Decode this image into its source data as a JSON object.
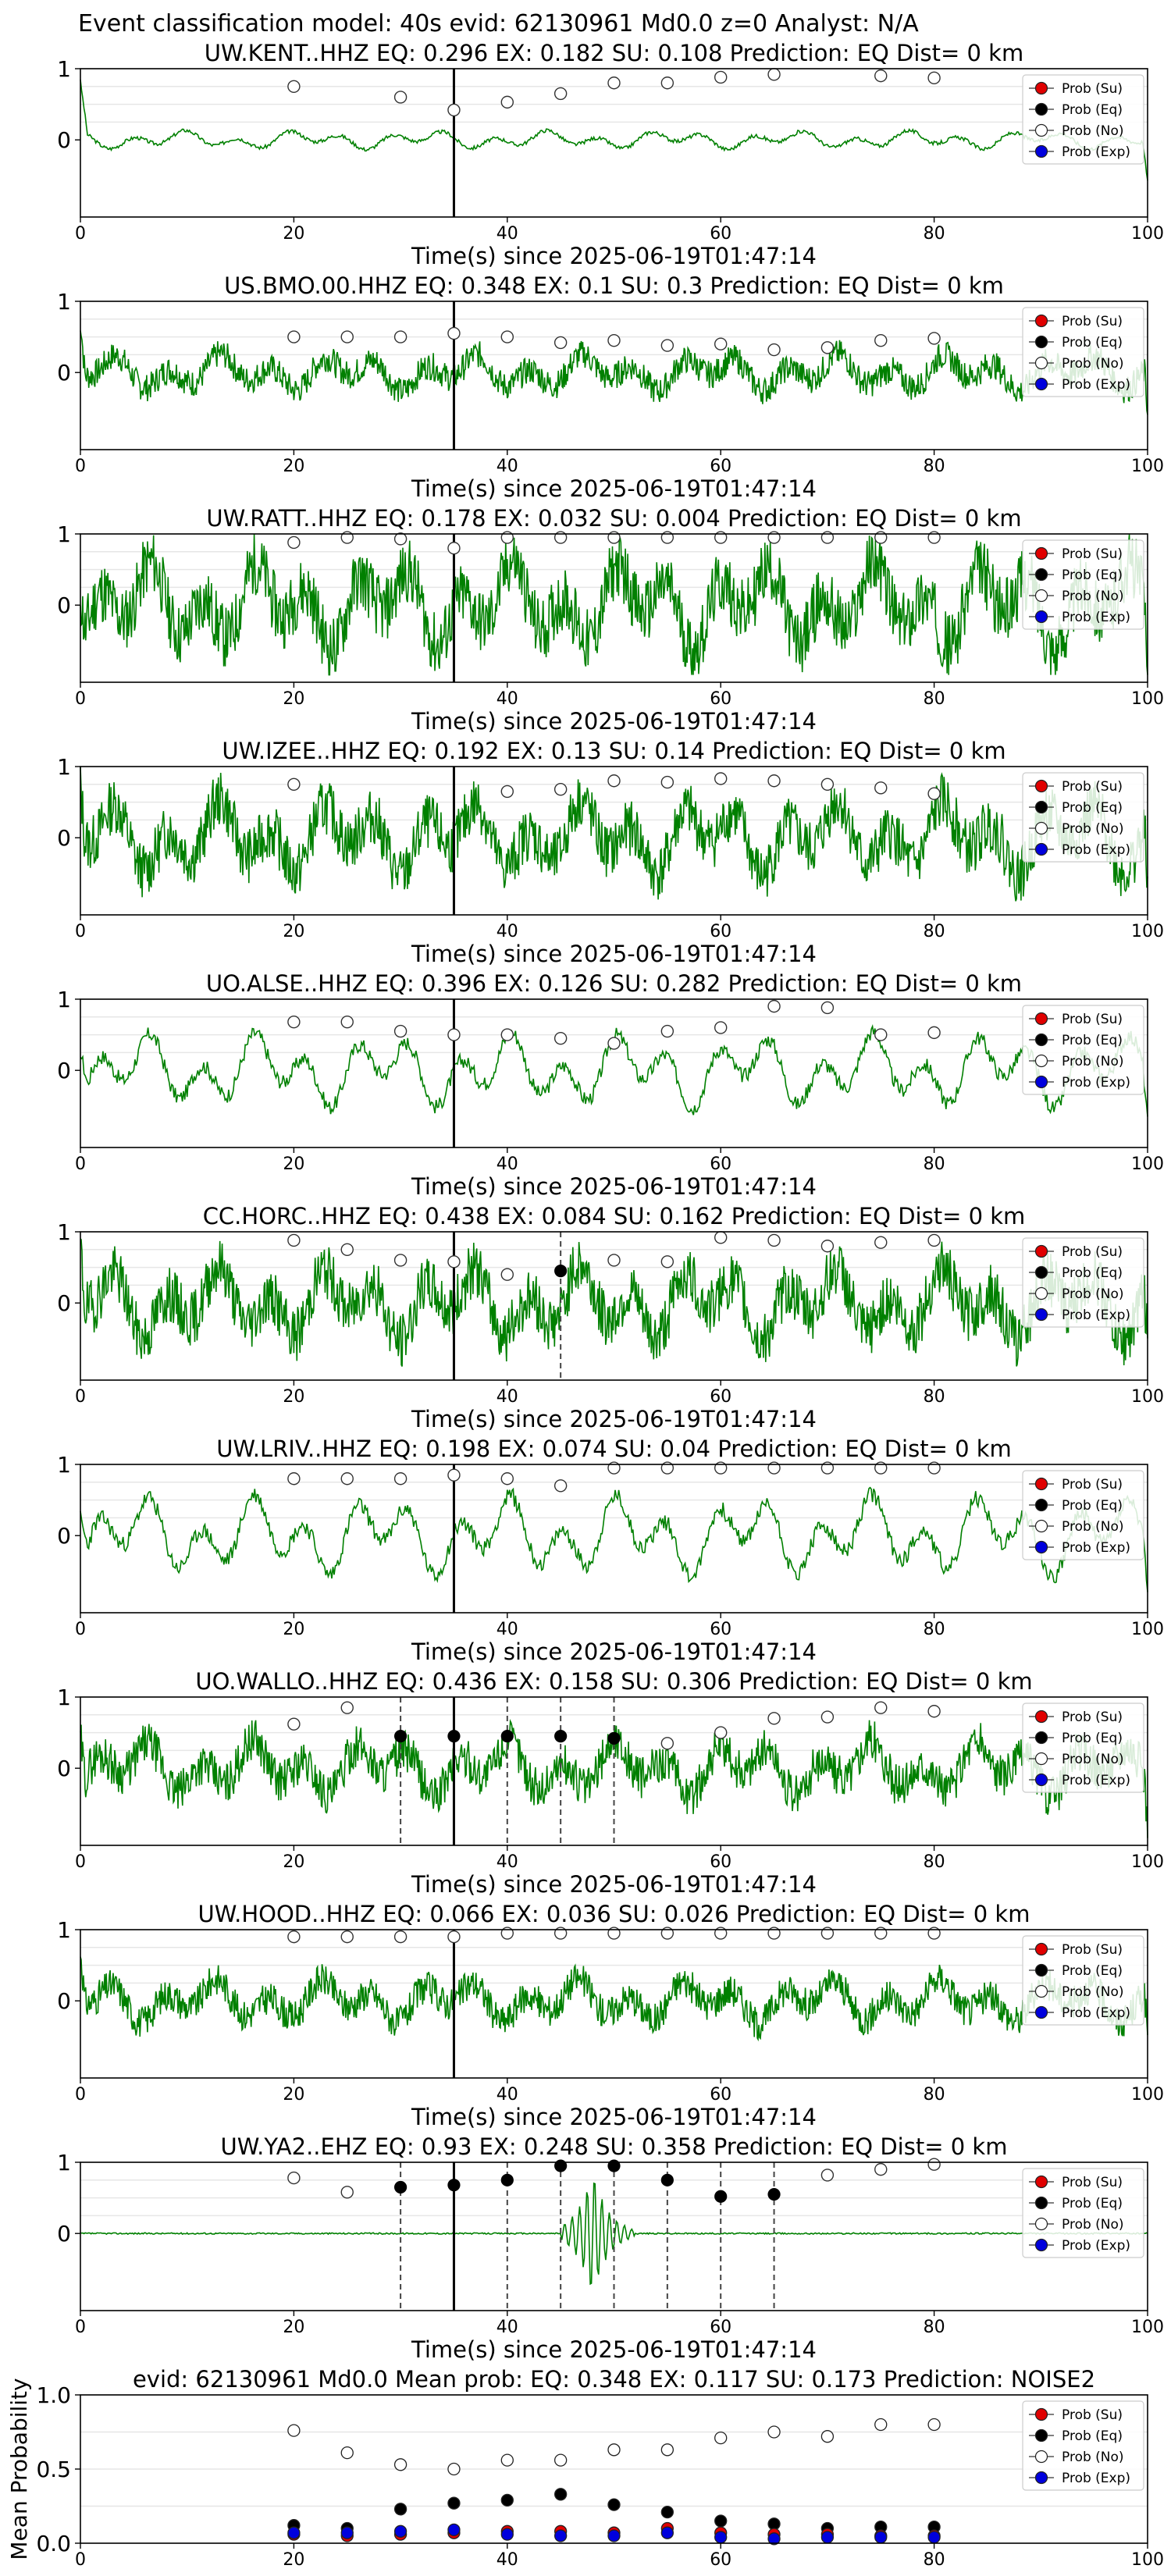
{
  "suptitle": "Event classification model: 40s evid: 62130961 Md0.0 z=0 Analyst: N/A",
  "legend_labels": [
    "Prob (Su)",
    "Prob (Eq)",
    "Prob (No)",
    "Prob (Exp)"
  ],
  "colors": {
    "trace": "#008000",
    "su": "#e00000",
    "eq": "#000000",
    "no": "#ffffff",
    "exp": "#0000dd",
    "pick": "#000000",
    "dashed": "#444444",
    "grid": "#e6e6e6"
  },
  "chart_data": [
    {
      "type": "line",
      "station": "UW.KENT..HHZ",
      "title": "UW.KENT..HHZ   EQ: 0.296  EX: 0.182  SU: 0.108   Prediction: EQ    Dist= 0 km",
      "xlabel": "Time(s) since 2025-06-19T01:47:14",
      "xlim": [
        0,
        100
      ],
      "xticks": [
        "0",
        "20",
        "40",
        "60",
        "80",
        "100"
      ],
      "yticks": [
        "0",
        "1"
      ],
      "ylim": [
        -1,
        1
      ],
      "pick_time": 35,
      "trace": {
        "style": "smooth",
        "amp": 0.15,
        "seed": 3
      },
      "prob_times": [
        20,
        25,
        30,
        35,
        40,
        45,
        50,
        55,
        60,
        65,
        70,
        75,
        80
      ],
      "prob_no": [
        0.75,
        null,
        0.6,
        0.42,
        0.53,
        0.65,
        0.8,
        0.8,
        0.88,
        0.92,
        null,
        0.9,
        0.87
      ],
      "eq_points": [],
      "dashed": []
    },
    {
      "type": "line",
      "station": "US.BMO.00.HHZ",
      "title": "US.BMO.00.HHZ   EQ: 0.348  EX: 0.1  SU: 0.3   Prediction: EQ    Dist= 0 km",
      "xlabel": "Time(s) since 2025-06-19T01:47:14",
      "xlim": [
        0,
        100
      ],
      "xticks": [
        "0",
        "20",
        "40",
        "60",
        "80",
        "100"
      ],
      "yticks": [
        "0",
        "1"
      ],
      "ylim": [
        -1,
        1
      ],
      "pick_time": 35,
      "trace": {
        "style": "noisy",
        "amp": 0.3,
        "seed": 7
      },
      "prob_times": [
        20,
        25,
        30,
        35,
        40,
        45,
        50,
        55,
        60,
        65,
        70,
        75,
        80
      ],
      "prob_no": [
        0.5,
        0.5,
        0.5,
        0.55,
        0.5,
        0.42,
        0.45,
        0.38,
        0.4,
        0.32,
        0.35,
        0.45,
        0.48
      ],
      "eq_points": [],
      "dashed": []
    },
    {
      "type": "line",
      "station": "UW.RATT..HHZ",
      "title": "UW.RATT..HHZ   EQ: 0.178  EX: 0.032  SU: 0.004   Prediction: EQ    Dist= 0 km",
      "xlabel": "Time(s) since 2025-06-19T01:47:14",
      "xlim": [
        0,
        100
      ],
      "xticks": [
        "0",
        "20",
        "40",
        "60",
        "80",
        "100"
      ],
      "yticks": [
        "0",
        "1"
      ],
      "ylim": [
        -1,
        1
      ],
      "pick_time": 35,
      "trace": {
        "style": "noisy",
        "amp": 0.7,
        "seed": 11
      },
      "prob_times": [
        20,
        25,
        30,
        35,
        40,
        45,
        50,
        55,
        60,
        65,
        70,
        75,
        80
      ],
      "prob_no": [
        0.88,
        0.95,
        0.93,
        0.8,
        0.95,
        0.95,
        0.95,
        0.95,
        0.95,
        0.95,
        0.95,
        0.95,
        0.95
      ],
      "eq_points": [],
      "dashed": []
    },
    {
      "type": "line",
      "station": "UW.IZEE..HHZ",
      "title": "UW.IZEE..HHZ   EQ: 0.192  EX: 0.13  SU: 0.14   Prediction: EQ    Dist= 0 km",
      "xlabel": "Time(s) since 2025-06-19T01:47:14",
      "xlim": [
        0,
        100
      ],
      "xticks": [
        "0",
        "20",
        "40",
        "60",
        "80",
        "100"
      ],
      "yticks": [
        "0",
        "1"
      ],
      "ylim": [
        -1,
        1
      ],
      "pick_time": 35,
      "trace": {
        "style": "noisy",
        "amp": 0.6,
        "seed": 13
      },
      "prob_times": [
        20,
        25,
        30,
        35,
        40,
        45,
        50,
        55,
        60,
        65,
        70,
        75,
        80
      ],
      "prob_no": [
        0.75,
        null,
        null,
        null,
        0.65,
        0.68,
        0.8,
        0.78,
        0.83,
        0.8,
        0.75,
        0.7,
        0.62
      ],
      "eq_points": [],
      "dashed": []
    },
    {
      "type": "line",
      "station": "UO.ALSE..HHZ",
      "title": "UO.ALSE..HHZ   EQ: 0.396  EX: 0.126  SU: 0.282   Prediction: EQ    Dist= 0 km",
      "xlabel": "Time(s) since 2025-06-19T01:47:14",
      "xlim": [
        0,
        100
      ],
      "xticks": [
        "0",
        "20",
        "40",
        "60",
        "80",
        "100"
      ],
      "yticks": [
        "0",
        "1"
      ],
      "ylim": [
        -1,
        1
      ],
      "pick_time": 35,
      "trace": {
        "style": "smooth",
        "amp": 0.6,
        "seed": 17
      },
      "prob_times": [
        20,
        25,
        30,
        35,
        40,
        45,
        50,
        55,
        60,
        65,
        70,
        75,
        80
      ],
      "prob_no": [
        0.68,
        0.68,
        0.55,
        0.5,
        0.5,
        0.45,
        0.38,
        0.55,
        0.6,
        0.9,
        0.88,
        0.5,
        0.53
      ],
      "eq_points": [],
      "dashed": []
    },
    {
      "type": "line",
      "station": "CC.HORC..HHZ",
      "title": "CC.HORC..HHZ   EQ: 0.438  EX: 0.084  SU: 0.162   Prediction: EQ    Dist= 0 km",
      "xlabel": "Time(s) since 2025-06-19T01:47:14",
      "xlim": [
        0,
        100
      ],
      "xticks": [
        "0",
        "20",
        "40",
        "60",
        "80",
        "100"
      ],
      "yticks": [
        "0",
        "1"
      ],
      "ylim": [
        -1,
        1
      ],
      "pick_time": 35,
      "trace": {
        "style": "noisy",
        "amp": 0.6,
        "seed": 19
      },
      "prob_times": [
        20,
        25,
        30,
        35,
        40,
        45,
        50,
        55,
        60,
        65,
        70,
        75,
        80
      ],
      "prob_no": [
        0.88,
        0.75,
        0.6,
        0.58,
        0.4,
        null,
        0.6,
        0.58,
        0.92,
        0.88,
        0.8,
        0.85,
        0.88
      ],
      "eq_points": [
        [
          45,
          0.45
        ]
      ],
      "dashed": [
        45
      ]
    },
    {
      "type": "line",
      "station": "UW.LRIV..HHZ",
      "title": "UW.LRIV..HHZ   EQ: 0.198  EX: 0.074  SU: 0.04   Prediction: EQ    Dist= 0 km",
      "xlabel": "Time(s) since 2025-06-19T01:47:14",
      "xlim": [
        0,
        100
      ],
      "xticks": [
        "0",
        "20",
        "40",
        "60",
        "80",
        "100"
      ],
      "yticks": [
        "0",
        "1"
      ],
      "ylim": [
        -1,
        1
      ],
      "pick_time": 35,
      "trace": {
        "style": "smooth",
        "amp": 0.65,
        "seed": 23
      },
      "prob_times": [
        20,
        25,
        30,
        35,
        40,
        45,
        50,
        55,
        60,
        65,
        70,
        75,
        80
      ],
      "prob_no": [
        0.8,
        0.8,
        0.8,
        0.85,
        0.8,
        0.7,
        0.95,
        0.95,
        0.95,
        0.95,
        0.95,
        0.95,
        0.95
      ],
      "eq_points": [],
      "dashed": []
    },
    {
      "type": "line",
      "station": "UO.WALLO..HHZ",
      "title": "UO.WALLO..HHZ   EQ: 0.436  EX: 0.158  SU: 0.306   Prediction: EQ    Dist= 0 km",
      "xlabel": "Time(s) since 2025-06-19T01:47:14",
      "xlim": [
        0,
        100
      ],
      "xticks": [
        "0",
        "20",
        "40",
        "60",
        "80",
        "100"
      ],
      "yticks": [
        "0",
        "1"
      ],
      "ylim": [
        -1,
        1
      ],
      "pick_time": 35,
      "trace": {
        "style": "noisy",
        "amp": 0.45,
        "seed": 29
      },
      "prob_times": [
        20,
        25,
        30,
        35,
        40,
        45,
        50,
        55,
        60,
        65,
        70,
        75,
        80
      ],
      "prob_no": [
        0.62,
        0.85,
        null,
        null,
        null,
        null,
        null,
        0.35,
        0.5,
        0.7,
        0.72,
        0.85,
        0.8
      ],
      "eq_points": [
        [
          30,
          0.45
        ],
        [
          35,
          0.45
        ],
        [
          40,
          0.45
        ],
        [
          45,
          0.45
        ],
        [
          50,
          0.42
        ]
      ],
      "dashed": [
        30,
        40,
        45,
        50
      ]
    },
    {
      "type": "line",
      "station": "UW.HOOD..HHZ",
      "title": "UW.HOOD..HHZ   EQ: 0.066  EX: 0.036  SU: 0.026   Prediction: EQ    Dist= 0 km",
      "xlabel": "Time(s) since 2025-06-19T01:47:14",
      "xlim": [
        0,
        100
      ],
      "xticks": [
        "0",
        "20",
        "40",
        "60",
        "80",
        "100"
      ],
      "yticks": [
        "0",
        "1"
      ],
      "ylim": [
        -1,
        1
      ],
      "pick_time": 35,
      "trace": {
        "style": "noisy",
        "amp": 0.35,
        "seed": 31
      },
      "prob_times": [
        20,
        25,
        30,
        35,
        40,
        45,
        50,
        55,
        60,
        65,
        70,
        75,
        80
      ],
      "prob_no": [
        0.9,
        0.9,
        0.9,
        0.9,
        0.95,
        0.95,
        0.95,
        0.95,
        0.95,
        0.95,
        0.95,
        0.95,
        0.95
      ],
      "eq_points": [],
      "dashed": []
    },
    {
      "type": "line",
      "station": "UW.YA2..EHZ",
      "title": "UW.YA2..EHZ   EQ: 0.93  EX: 0.248  SU: 0.358   Prediction: EQ    Dist= 0 km",
      "xlabel": "Time(s) since 2025-06-19T01:47:14",
      "xlim": [
        0,
        100
      ],
      "xticks": [
        "0",
        "20",
        "40",
        "60",
        "80",
        "100"
      ],
      "yticks": [
        "0",
        "1"
      ],
      "ylim": [
        -1,
        1
      ],
      "pick_time": 35,
      "trace": {
        "style": "spike",
        "amp": 0.02,
        "seed": 37
      },
      "prob_times": [
        20,
        25,
        30,
        35,
        40,
        45,
        50,
        55,
        60,
        65,
        70,
        75,
        80
      ],
      "prob_no": [
        0.78,
        0.58,
        null,
        null,
        null,
        null,
        null,
        null,
        null,
        null,
        0.82,
        0.9,
        0.97
      ],
      "eq_points": [
        [
          30,
          0.65
        ],
        [
          35,
          0.68
        ],
        [
          40,
          0.75
        ],
        [
          45,
          0.95
        ],
        [
          50,
          0.95
        ],
        [
          55,
          0.75
        ],
        [
          60,
          0.52
        ],
        [
          65,
          0.55
        ]
      ],
      "dashed": [
        30,
        40,
        45,
        50,
        55,
        60,
        65
      ]
    },
    {
      "type": "scatter",
      "title": "evid: 62130961  Md0.0   Mean prob:   EQ: 0.348  EX: 0.117  SU: 0.173   Prediction: NOISE2",
      "ylabel": "Mean Probability",
      "xlim": [
        0,
        100
      ],
      "ylim": [
        0,
        1
      ],
      "xticks": [
        "0",
        "20",
        "40",
        "60",
        "80",
        "100"
      ],
      "yticks": [
        "0.0",
        "0.5",
        "1.0"
      ],
      "x": [
        20,
        25,
        30,
        35,
        40,
        45,
        50,
        55,
        60,
        65,
        70,
        75,
        80
      ],
      "series": [
        {
          "name": "Prob (No)",
          "values": [
            0.76,
            0.61,
            0.53,
            0.5,
            0.56,
            0.56,
            0.63,
            0.63,
            0.71,
            0.75,
            0.72,
            0.8,
            0.8
          ]
        },
        {
          "name": "Prob (Eq)",
          "values": [
            0.12,
            0.1,
            0.23,
            0.27,
            0.29,
            0.33,
            0.26,
            0.21,
            0.15,
            0.13,
            0.1,
            0.11,
            0.11
          ]
        },
        {
          "name": "Prob (Su)",
          "values": [
            0.06,
            0.05,
            0.06,
            0.07,
            0.08,
            0.08,
            0.07,
            0.1,
            0.07,
            0.06,
            0.06,
            0.05,
            0.05
          ]
        },
        {
          "name": "Prob (Exp)",
          "values": [
            0.07,
            0.07,
            0.08,
            0.09,
            0.06,
            0.05,
            0.05,
            0.07,
            0.04,
            0.03,
            0.04,
            0.04,
            0.04
          ]
        }
      ]
    }
  ]
}
